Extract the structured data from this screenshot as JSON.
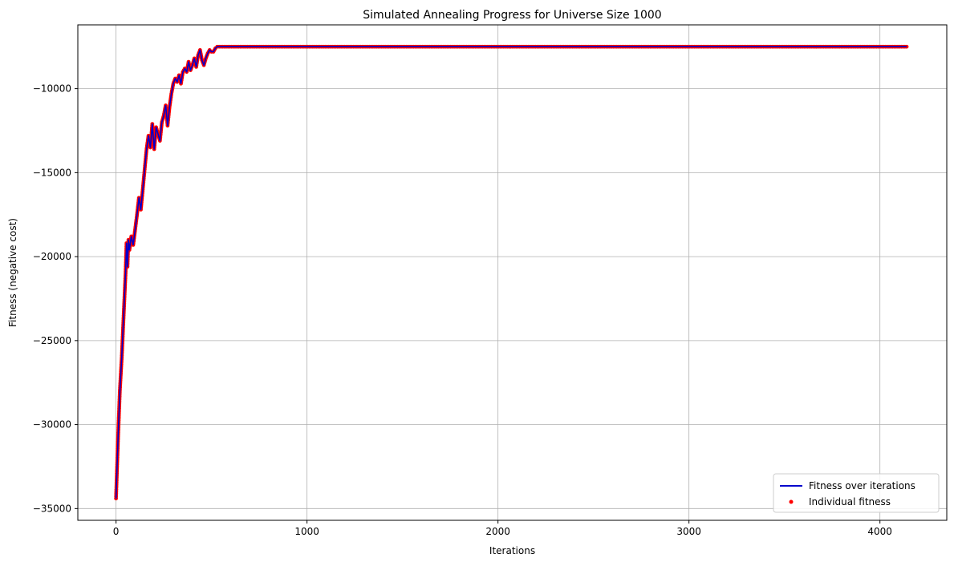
{
  "chart_data": {
    "type": "line",
    "title": "Simulated Annealing Progress for Universe Size 1000",
    "xlabel": "Iterations",
    "ylabel": "Fitness (negative cost)",
    "xlim": [
      -200,
      4350
    ],
    "ylim": [
      -35700,
      -6200
    ],
    "xticks": [
      0,
      1000,
      2000,
      3000,
      4000
    ],
    "yticks": [
      -35000,
      -30000,
      -25000,
      -20000,
      -15000,
      -10000
    ],
    "xtick_labels": [
      "0",
      "1000",
      "2000",
      "3000",
      "4000"
    ],
    "ytick_labels": [
      "−35000",
      "−30000",
      "−25000",
      "−20000",
      "−15000",
      "−10000"
    ],
    "grid": true,
    "legend_position": "bottom-right",
    "series": [
      {
        "name": "Fitness over iterations",
        "kind": "line",
        "color": "#0000cc",
        "x": [
          0,
          10,
          20,
          30,
          40,
          50,
          55,
          60,
          65,
          70,
          80,
          90,
          100,
          110,
          120,
          130,
          140,
          150,
          160,
          170,
          180,
          190,
          200,
          210,
          220,
          230,
          240,
          250,
          260,
          270,
          280,
          290,
          300,
          310,
          320,
          330,
          340,
          350,
          360,
          370,
          380,
          390,
          400,
          410,
          420,
          430,
          440,
          450,
          460,
          470,
          480,
          490,
          500,
          510,
          520,
          530,
          540,
          4140
        ],
        "y": [
          -34400,
          -31000,
          -28000,
          -26000,
          -23500,
          -21000,
          -19200,
          -20600,
          -19000,
          -19600,
          -18800,
          -19300,
          -18400,
          -17500,
          -16500,
          -17200,
          -16000,
          -14800,
          -13600,
          -12800,
          -13500,
          -12100,
          -13600,
          -12300,
          -12700,
          -13100,
          -12000,
          -11600,
          -11000,
          -12200,
          -11100,
          -10300,
          -9700,
          -9400,
          -9600,
          -9200,
          -9700,
          -9000,
          -8800,
          -9000,
          -8400,
          -8900,
          -8600,
          -8200,
          -8700,
          -8000,
          -7700,
          -8300,
          -8600,
          -8200,
          -7900,
          -7700,
          -7800,
          -7800,
          -7600,
          -7500,
          -7500,
          -7500
        ]
      },
      {
        "name": "Individual fitness",
        "kind": "scatter",
        "color": "#ff0000"
      }
    ]
  }
}
